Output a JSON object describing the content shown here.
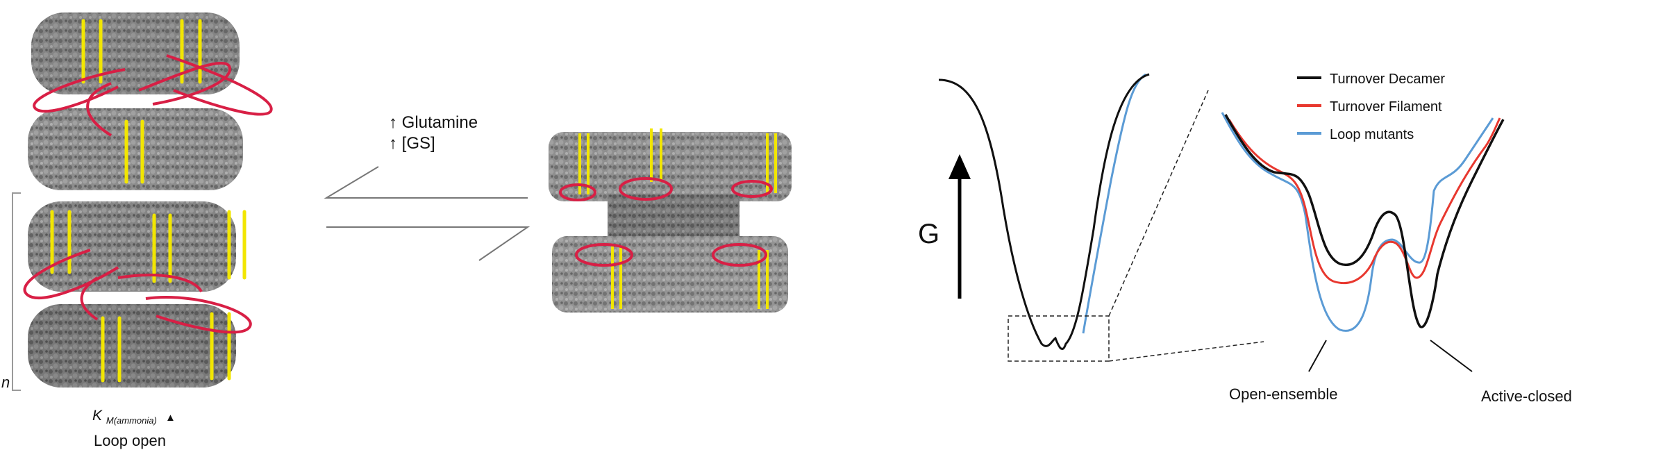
{
  "left_panel": {
    "n_label": "n",
    "km_symbol": "K",
    "km_subscript": "M(ammonia)",
    "km_arrow": "▲",
    "loop_label": "Loop open"
  },
  "equilibrium": {
    "label_line1": "↑ Glutamine",
    "label_line2": "↑ [GS]"
  },
  "energy_plot": {
    "y_axis_label": "G",
    "legend": [
      {
        "label": "Turnover Decamer",
        "color": "#111111"
      },
      {
        "label": "Turnover Filament",
        "color": "#e8382f"
      },
      {
        "label": "Loop mutants",
        "color": "#5b9bd5"
      }
    ],
    "annotations": {
      "left_minimum": "Open-ensemble",
      "right_minimum": "Active-closed"
    }
  },
  "colors": {
    "density_gray": "#7d7d7d",
    "helix_yellow": "#f2e600",
    "loop_red": "#d81f45"
  }
}
